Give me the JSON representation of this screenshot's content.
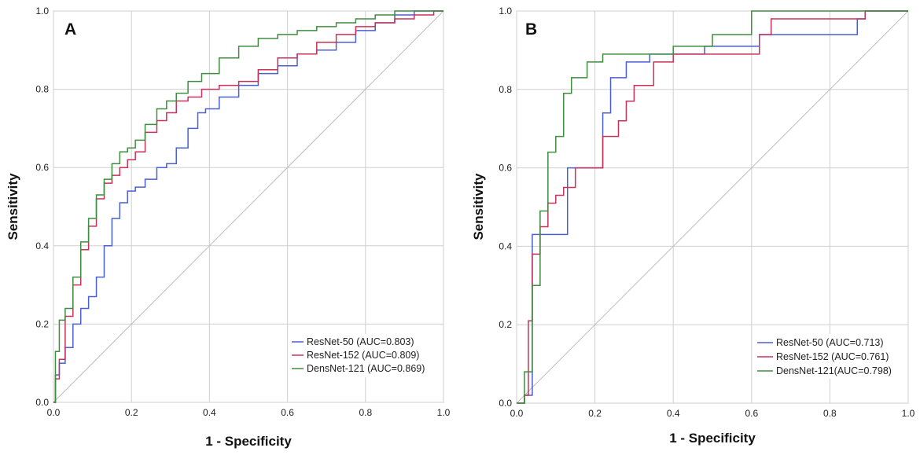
{
  "chart_data": [
    {
      "type": "line",
      "panel": "A",
      "xlabel": "1 - Specificity",
      "ylabel": "Sensitivity",
      "xlim": [
        0,
        1
      ],
      "ylim": [
        0,
        1
      ],
      "xticks": [
        "0.0",
        "0.2",
        "0.4",
        "0.6",
        "0.8",
        "1.0"
      ],
      "yticks": [
        "0.0",
        "0.2",
        "0.4",
        "0.6",
        "0.8",
        "1.0"
      ],
      "grid": true,
      "legend_position": "bottom-right",
      "reference_line": true,
      "series": [
        {
          "name": "ResNet-50",
          "legend": "ResNet-50 (AUC=0.803)",
          "color": "#4a5fd0",
          "x": [
            0,
            0.01,
            0.02,
            0.04,
            0.06,
            0.08,
            0.1,
            0.12,
            0.14,
            0.16,
            0.18,
            0.2,
            0.22,
            0.25,
            0.28,
            0.3,
            0.33,
            0.36,
            0.38,
            0.4,
            0.45,
            0.5,
            0.55,
            0.6,
            0.65,
            0.7,
            0.75,
            0.8,
            0.85,
            0.9,
            0.95,
            1.0
          ],
          "y": [
            0,
            0.07,
            0.1,
            0.14,
            0.2,
            0.24,
            0.27,
            0.32,
            0.4,
            0.47,
            0.51,
            0.54,
            0.55,
            0.57,
            0.6,
            0.61,
            0.65,
            0.7,
            0.74,
            0.75,
            0.78,
            0.81,
            0.84,
            0.86,
            0.89,
            0.9,
            0.92,
            0.95,
            0.97,
            0.99,
            1.0,
            1.0
          ]
        },
        {
          "name": "ResNet-152",
          "legend": "ResNet-152 (AUC=0.809)",
          "color": "#c8325a",
          "x": [
            0,
            0.01,
            0.02,
            0.04,
            0.06,
            0.08,
            0.1,
            0.12,
            0.14,
            0.16,
            0.18,
            0.2,
            0.22,
            0.25,
            0.28,
            0.3,
            0.33,
            0.36,
            0.4,
            0.45,
            0.5,
            0.55,
            0.6,
            0.65,
            0.7,
            0.75,
            0.8,
            0.85,
            0.9,
            0.95,
            1.0
          ],
          "y": [
            0,
            0.06,
            0.11,
            0.22,
            0.3,
            0.39,
            0.45,
            0.52,
            0.56,
            0.58,
            0.6,
            0.62,
            0.64,
            0.69,
            0.72,
            0.74,
            0.77,
            0.78,
            0.8,
            0.81,
            0.82,
            0.85,
            0.88,
            0.89,
            0.92,
            0.94,
            0.96,
            0.97,
            0.98,
            0.99,
            1.0
          ]
        },
        {
          "name": "DensNet-121",
          "legend": "DensNet-121 (AUC=0.869)",
          "color": "#3f8d3f",
          "x": [
            0,
            0.01,
            0.02,
            0.04,
            0.06,
            0.08,
            0.1,
            0.12,
            0.14,
            0.16,
            0.18,
            0.2,
            0.22,
            0.25,
            0.28,
            0.3,
            0.33,
            0.36,
            0.4,
            0.45,
            0.5,
            0.55,
            0.6,
            0.65,
            0.7,
            0.75,
            0.8,
            0.85,
            0.9,
            0.95,
            1.0
          ],
          "y": [
            0,
            0.13,
            0.21,
            0.24,
            0.32,
            0.41,
            0.47,
            0.53,
            0.57,
            0.61,
            0.64,
            0.65,
            0.67,
            0.71,
            0.75,
            0.77,
            0.79,
            0.82,
            0.84,
            0.88,
            0.91,
            0.93,
            0.94,
            0.95,
            0.96,
            0.97,
            0.98,
            0.99,
            1.0,
            1.0,
            1.0
          ]
        }
      ],
      "legend_entries": [
        "ResNet-50 (AUC=0.803)",
        "ResNet-152 (AUC=0.809)",
        "DensNet-121 (AUC=0.869)"
      ]
    },
    {
      "type": "line",
      "panel": "B",
      "xlabel": "1 - Specificity",
      "ylabel": "Sensitivity",
      "xlim": [
        0,
        1
      ],
      "ylim": [
        0,
        1
      ],
      "xticks": [
        "0.0",
        "0.2",
        "0.4",
        "0.6",
        "0.8",
        "1.0"
      ],
      "yticks": [
        "0.0",
        "0.2",
        "0.4",
        "0.6",
        "0.8",
        "1.0"
      ],
      "grid": true,
      "legend_position": "bottom-right",
      "reference_line": true,
      "series": [
        {
          "name": "ResNet-50",
          "legend": "ResNet-50 (AUC=0.713)",
          "color": "#4a5fd0",
          "step": true,
          "x": [
            0,
            0.02,
            0.04,
            0.06,
            0.1,
            0.13,
            0.2,
            0.22,
            0.24,
            0.26,
            0.28,
            0.3,
            0.34,
            0.4,
            0.44,
            0.48,
            0.6,
            0.62,
            0.87,
            0.89,
            1.0
          ],
          "y": [
            0,
            0.02,
            0.43,
            0.43,
            0.43,
            0.6,
            0.6,
            0.74,
            0.83,
            0.83,
            0.87,
            0.87,
            0.89,
            0.89,
            0.89,
            0.91,
            0.91,
            0.94,
            0.98,
            1.0,
            1.0
          ]
        },
        {
          "name": "ResNet-152",
          "legend": "ResNet-152 (AUC=0.761)",
          "color": "#c8325a",
          "step": true,
          "x": [
            0,
            0.02,
            0.03,
            0.04,
            0.06,
            0.08,
            0.1,
            0.12,
            0.15,
            0.2,
            0.22,
            0.26,
            0.28,
            0.3,
            0.32,
            0.35,
            0.4,
            0.45,
            0.58,
            0.62,
            0.65,
            0.89,
            1.0
          ],
          "y": [
            0,
            0.02,
            0.21,
            0.38,
            0.45,
            0.51,
            0.53,
            0.55,
            0.6,
            0.6,
            0.68,
            0.72,
            0.77,
            0.81,
            0.81,
            0.87,
            0.89,
            0.89,
            0.89,
            0.94,
            0.98,
            1.0,
            1.0
          ]
        },
        {
          "name": "DensNet-121",
          "legend": "DensNet-121(AUC=0.798)",
          "color": "#3f8d3f",
          "step": true,
          "x": [
            0,
            0.02,
            0.04,
            0.06,
            0.08,
            0.1,
            0.12,
            0.14,
            0.18,
            0.22,
            0.26,
            0.32,
            0.4,
            0.5,
            0.54,
            0.6,
            0.62,
            0.7,
            0.8,
            1.0
          ],
          "y": [
            0,
            0.08,
            0.3,
            0.49,
            0.64,
            0.68,
            0.79,
            0.83,
            0.87,
            0.89,
            0.89,
            0.89,
            0.91,
            0.94,
            0.94,
            1.0,
            1.0,
            1.0,
            1.0,
            1.0
          ]
        }
      ],
      "legend_entries": [
        "ResNet-50 (AUC=0.713)",
        "ResNet-152 (AUC=0.761)",
        "DensNet-121(AUC=0.798)"
      ]
    }
  ]
}
